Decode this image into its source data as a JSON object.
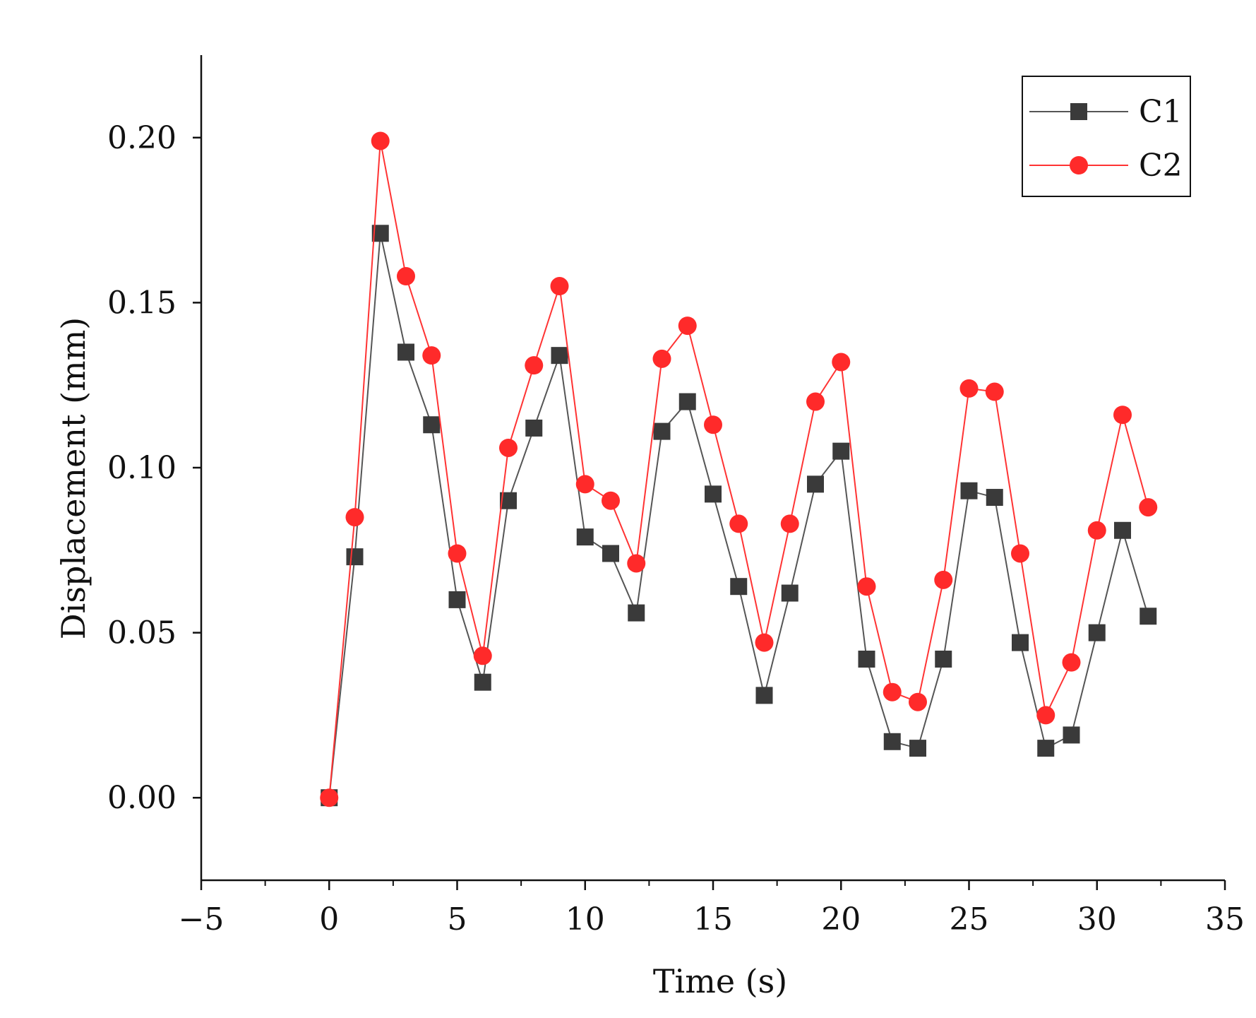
{
  "chart_data": {
    "type": "line",
    "title": "",
    "xlabel": "Time (s)",
    "ylabel": "Displacement (mm)",
    "xlim": [
      -5,
      35
    ],
    "ylim": [
      -0.025,
      0.225
    ],
    "x_ticks": [
      -5,
      0,
      5,
      10,
      15,
      20,
      25,
      30,
      35
    ],
    "x_tick_labels": [
      "−5",
      "0",
      "5",
      "10",
      "15",
      "20",
      "25",
      "30",
      "35"
    ],
    "y_ticks": [
      0.0,
      0.05,
      0.1,
      0.15,
      0.2
    ],
    "y_tick_labels": [
      "0.00",
      "0.05",
      "0.10",
      "0.15",
      "0.20"
    ],
    "grid": false,
    "legend_position": "top-right",
    "x": [
      0,
      1,
      2,
      3,
      4,
      5,
      6,
      7,
      8,
      9,
      10,
      11,
      12,
      13,
      14,
      15,
      16,
      17,
      18,
      19,
      20,
      21,
      22,
      23,
      24,
      25,
      26,
      27,
      28,
      29,
      30,
      31,
      32
    ],
    "series": [
      {
        "name": "C1",
        "marker": "square",
        "color": "#3a3a3a",
        "line_color": "#555555",
        "values": [
          0.0,
          0.073,
          0.171,
          0.135,
          0.113,
          0.06,
          0.035,
          0.09,
          0.112,
          0.134,
          0.079,
          0.074,
          0.056,
          0.111,
          0.12,
          0.092,
          0.064,
          0.031,
          0.062,
          0.095,
          0.105,
          0.042,
          0.017,
          0.015,
          0.042,
          0.093,
          0.091,
          0.047,
          0.015,
          0.019,
          0.05,
          0.081,
          0.055
        ]
      },
      {
        "name": "C2",
        "marker": "circle",
        "color": "#ff2a2a",
        "line_color": "#ff3333",
        "values": [
          0.0,
          0.085,
          0.199,
          0.158,
          0.134,
          0.074,
          0.043,
          0.106,
          0.131,
          0.155,
          0.095,
          0.09,
          0.071,
          0.133,
          0.143,
          0.113,
          0.083,
          0.047,
          0.083,
          0.12,
          0.132,
          0.064,
          0.032,
          0.029,
          0.066,
          0.124,
          0.123,
          0.074,
          0.025,
          0.041,
          0.081,
          0.116,
          0.088
        ]
      }
    ]
  }
}
